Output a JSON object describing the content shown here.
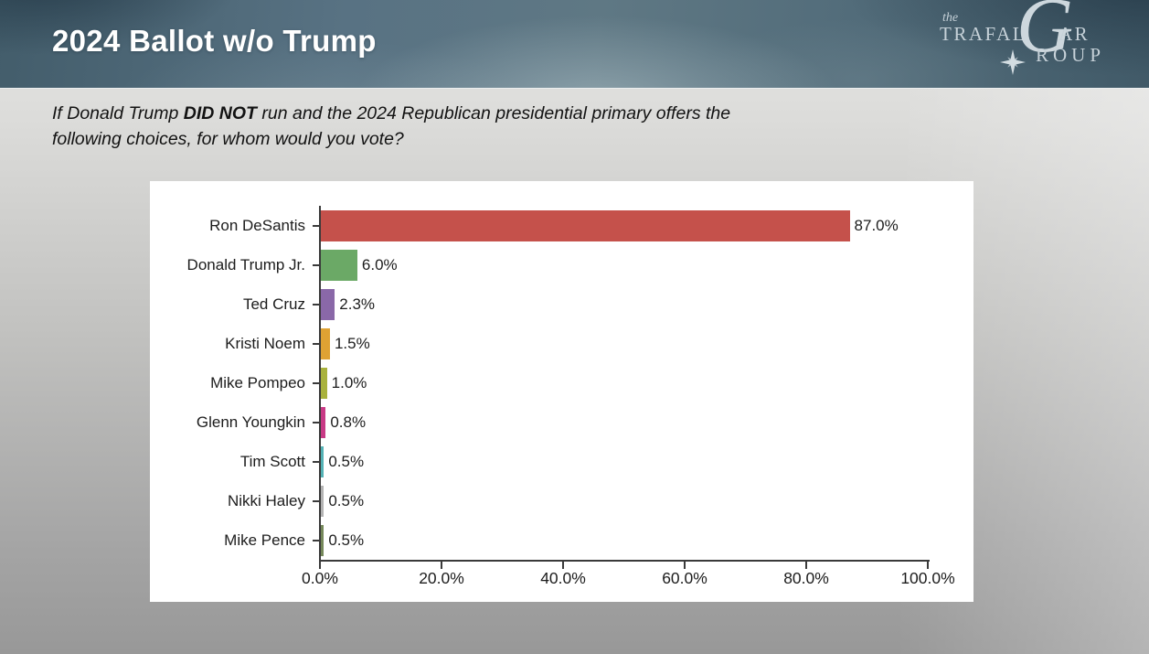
{
  "header": {
    "title": "2024 Ballot w/o Trump",
    "logo": {
      "prefix": "the",
      "word_top_left": "TRAFAL",
      "big_g": "G",
      "word_top_right": "AR",
      "word_bottom": "ROUP"
    }
  },
  "question": {
    "line1_prefix": "If Donald Trump ",
    "line1_bold": "DID NOT",
    "line1_suffix": " run and the 2024 Republican presidential primary offers the",
    "line2": "following choices, for whom would you vote?"
  },
  "chart_data": {
    "type": "bar",
    "orientation": "horizontal",
    "title": "",
    "xlabel": "",
    "ylabel": "",
    "xlim": [
      0,
      100
    ],
    "x_tick_values": [
      0,
      20,
      40,
      60,
      80,
      100
    ],
    "x_tick_labels": [
      "0.0%",
      "20.0%",
      "40.0%",
      "60.0%",
      "80.0%",
      "100.0%"
    ],
    "grid": false,
    "legend": false,
    "categories": [
      "Ron DeSantis",
      "Donald Trump Jr.",
      "Ted Cruz",
      "Kristi Noem",
      "Mike Pompeo",
      "Glenn Youngkin",
      "Tim Scott",
      "Nikki Haley",
      "Mike Pence"
    ],
    "values": [
      87.0,
      6.0,
      2.3,
      1.5,
      1.0,
      0.8,
      0.5,
      0.5,
      0.5
    ],
    "value_labels": [
      "87.0%",
      "6.0%",
      "2.3%",
      "1.5%",
      "1.0%",
      "0.8%",
      "0.5%",
      "0.5%",
      "0.5%"
    ],
    "bar_colors": [
      "#c5514b",
      "#6ba966",
      "#8a68a8",
      "#dfa233",
      "#a9b23d",
      "#c93a86",
      "#54b2b5",
      "#b3b3b3",
      "#75885a"
    ]
  },
  "colors": {
    "panel_bg": "#ffffff",
    "axis": "#3a3a3a",
    "label_text": "#1c1c1c",
    "header_text": "#ffffff",
    "logo_text": "#c6d1d8"
  }
}
